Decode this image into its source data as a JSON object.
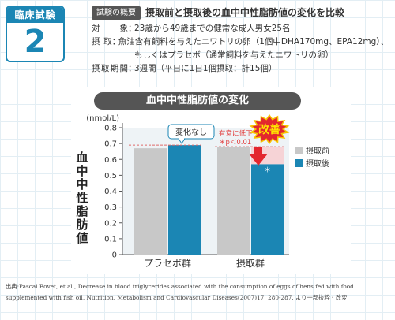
{
  "badge": {
    "label": "臨床試験",
    "number": "2"
  },
  "summary": {
    "tag": "試験の概要",
    "headline": "摂取前と摂取後の血中中性脂肪値の変化を比較",
    "items": [
      {
        "label": "対象",
        "value": "23歳から49歳までの健常な成人男女25名",
        "value2": ""
      },
      {
        "label": "摂取",
        "value": "魚油含有飼料を与えたニワトリの卵（1個中DHA170mg、EPA12mg）、",
        "value2": "もしくはプラセボ（通常飼料を与えたニワトリの卵）"
      },
      {
        "label": "摂取期間",
        "value": "3週間（平日に1日1個摂取：計15個）",
        "value2": ""
      }
    ]
  },
  "chart_data": {
    "type": "bar",
    "title": "血中中性脂肪値の変化",
    "ylabel": "血中中性脂肪値",
    "unit": "(nmol/L)",
    "ylim": [
      0,
      0.8
    ],
    "yticks": [
      "0",
      "0.1",
      "0.2",
      "0.3",
      "0.4",
      "0.5",
      "0.6",
      "0.7",
      "0.8"
    ],
    "categories": [
      "プラセボ群",
      "摂取群"
    ],
    "series": [
      {
        "name": "摂取前",
        "color": "#c8c8c8",
        "values": [
          0.67,
          0.68
        ]
      },
      {
        "name": "摂取後",
        "color": "#1b86b4",
        "values": [
          0.69,
          0.57
        ]
      }
    ],
    "legend_position": "right",
    "annotations": {
      "no_change": "変化なし",
      "significant_line1": "有意に低下",
      "significant_line2": "＊p＜0.01",
      "improve_badge": "改善",
      "asterisk": "＊"
    }
  },
  "source": {
    "line1": "出典:Pascal Bovet, et al., Decrease in blood triglycerides associated with the consumption of eggs of hens fed with food",
    "line2": "supplemented with fish oil, Nutrition, Metabolism and Cardiovascular Diseases(2007)17, 280-287, より一部抜粋・改変"
  }
}
